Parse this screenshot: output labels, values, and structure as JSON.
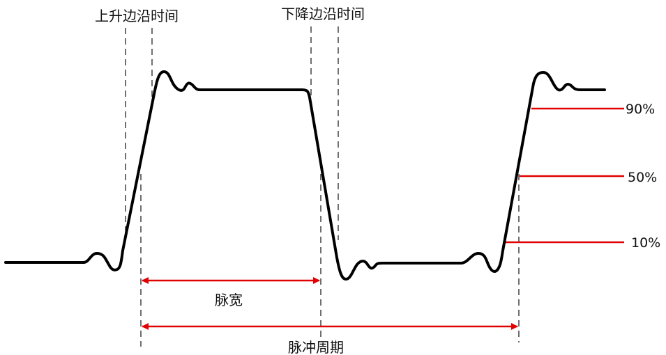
{
  "labels": {
    "rise_time": "上升边沿时间",
    "fall_time": "下降边沿时间",
    "pulse_width": "脉宽",
    "pulse_period": "脉冲周期"
  },
  "levels": {
    "p90": "90%",
    "p50": "50%",
    "p10": "10%"
  },
  "colors": {
    "waveform": "#000000",
    "markers": "#e00000",
    "guides": "#222222"
  }
}
